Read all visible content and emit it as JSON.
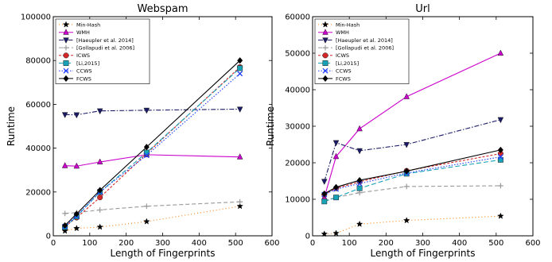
{
  "chart_data": [
    {
      "type": "line",
      "title": "Webspam",
      "xlabel": "Length of Fingerprints",
      "ylabel": "Runtime",
      "xlim": [
        0,
        600
      ],
      "ylim": [
        0,
        100000
      ],
      "xticks": [
        0,
        100,
        200,
        300,
        400,
        500,
        600
      ],
      "yticks": [
        0,
        20000,
        40000,
        60000,
        80000,
        100000
      ],
      "xtick_labels": [
        "0",
        "100",
        "200",
        "300",
        "400",
        "500",
        "600"
      ],
      "ytick_labels": [
        "0",
        "20000",
        "40000",
        "60000",
        "80000",
        "100000"
      ],
      "x": [
        32,
        64,
        128,
        256,
        512
      ],
      "legend": "top-left",
      "grid": false,
      "series": [
        {
          "name": "Min-Hash",
          "color": "#ff7f0e",
          "dash": "1,3",
          "marker": "star",
          "values": [
            2200,
            3400,
            4000,
            6500,
            13500
          ]
        },
        {
          "name": "WMH",
          "color": "#cc00cc",
          "dash": "",
          "marker": "tri-up",
          "values": [
            32000,
            31800,
            33700,
            37000,
            36000
          ]
        },
        {
          "name": "[Haeupler et al. 2014]",
          "color": "#1a1a66",
          "dash": "6,2,1.5,2",
          "marker": "tri-down",
          "values": [
            55300,
            55200,
            57000,
            57300,
            57800
          ]
        },
        {
          "name": "[Gollapudi et al. 2006]",
          "color": "#999999",
          "dash": "5,3",
          "marker": "plus",
          "values": [
            10200,
            10600,
            11800,
            13500,
            15500
          ]
        },
        {
          "name": "ICWS",
          "color": "#d62728",
          "dash": "3,2",
          "marker": "circle",
          "values": [
            4200,
            8300,
            17500,
            37500,
            77000
          ]
        },
        {
          "name": "[Li,2015]",
          "color": "#17a2b8",
          "dash": "6,3",
          "marker": "square",
          "values": [
            4000,
            8800,
            20000,
            38000,
            76500
          ]
        },
        {
          "name": "CCWS",
          "color": "#1f3fff",
          "dash": "1.5,2",
          "marker": "x",
          "values": [
            4300,
            9100,
            20000,
            36700,
            74000
          ]
        },
        {
          "name": "FCWS",
          "color": "#000000",
          "dash": "",
          "marker": "diamond",
          "values": [
            4700,
            10000,
            20800,
            40500,
            80000
          ]
        }
      ]
    },
    {
      "type": "line",
      "title": "Url",
      "xlabel": "Length of Fingerprints",
      "ylabel": "Runtime",
      "xlim": [
        0,
        600
      ],
      "ylim": [
        0,
        60000
      ],
      "xticks": [
        0,
        100,
        200,
        300,
        400,
        500,
        600
      ],
      "yticks": [
        0,
        10000,
        20000,
        30000,
        40000,
        50000,
        60000
      ],
      "xtick_labels": [
        "0",
        "100",
        "200",
        "300",
        "400",
        "500",
        "600"
      ],
      "ytick_labels": [
        "0",
        "10000",
        "20000",
        "30000",
        "40000",
        "50000",
        "60000"
      ],
      "x": [
        32,
        64,
        128,
        256,
        512
      ],
      "legend": "top-left",
      "grid": false,
      "series": [
        {
          "name": "Min-Hash",
          "color": "#ff7f0e",
          "dash": "1,3",
          "marker": "star",
          "values": [
            500,
            700,
            3200,
            4200,
            5400
          ]
        },
        {
          "name": "WMH",
          "color": "#cc00cc",
          "dash": "",
          "marker": "tri-up",
          "values": [
            10500,
            21700,
            29300,
            38100,
            50000
          ]
        },
        {
          "name": "[Haeupler et al. 2014]",
          "color": "#1a1a66",
          "dash": "6,2,1.5,2",
          "marker": "tri-down",
          "values": [
            14900,
            25500,
            23300,
            25000,
            31800
          ]
        },
        {
          "name": "[Gollapudi et al. 2006]",
          "color": "#999999",
          "dash": "5,3",
          "marker": "plus",
          "values": [
            9600,
            10500,
            11800,
            13500,
            13700
          ]
        },
        {
          "name": "ICWS",
          "color": "#d62728",
          "dash": "3,2",
          "marker": "circle",
          "values": [
            11300,
            13000,
            14800,
            17800,
            22500
          ]
        },
        {
          "name": "[Li,2015]",
          "color": "#17a2b8",
          "dash": "6,3",
          "marker": "square",
          "values": [
            9400,
            10500,
            13000,
            17000,
            20800
          ]
        },
        {
          "name": "CCWS",
          "color": "#1f3fff",
          "dash": "1.5,2",
          "marker": "x",
          "values": [
            11300,
            12800,
            14300,
            17200,
            21600
          ]
        },
        {
          "name": "FCWS",
          "color": "#000000",
          "dash": "",
          "marker": "diamond",
          "values": [
            11500,
            13300,
            15200,
            17700,
            23500
          ]
        }
      ]
    }
  ]
}
